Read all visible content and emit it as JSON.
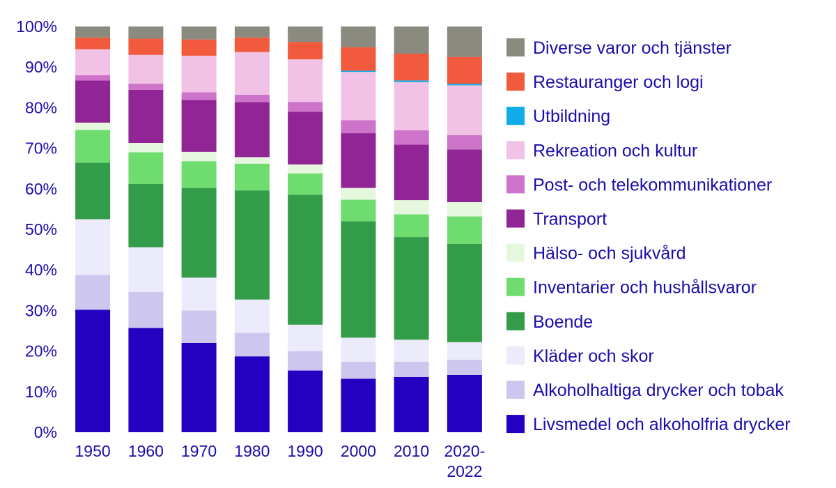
{
  "chart_data": {
    "type": "bar",
    "stacked": true,
    "title": "",
    "xlabel": "",
    "ylabel": "",
    "ylim": [
      0,
      100
    ],
    "y_tick_format": "{v}%",
    "y_ticks": [
      0,
      10,
      20,
      30,
      40,
      50,
      60,
      70,
      80,
      90,
      100
    ],
    "grid": false,
    "legend_position": "right",
    "categories": [
      {
        "label": "1950",
        "lines": [
          "1950"
        ]
      },
      {
        "label": "1960",
        "lines": [
          "1960"
        ]
      },
      {
        "label": "1970",
        "lines": [
          "1970"
        ]
      },
      {
        "label": "1980",
        "lines": [
          "1980"
        ]
      },
      {
        "label": "1990",
        "lines": [
          "1990"
        ]
      },
      {
        "label": "2000",
        "lines": [
          "2000"
        ]
      },
      {
        "label": "2010",
        "lines": [
          "2010"
        ]
      },
      {
        "label": "2020-2022",
        "lines": [
          "2020-",
          "2022"
        ]
      }
    ],
    "series": [
      {
        "name": "Livsmedel och alkoholfria drycker",
        "color": "#2400c1",
        "values": [
          30.2,
          25.7,
          22.0,
          18.7,
          15.2,
          13.2,
          13.6,
          14.1
        ]
      },
      {
        "name": "Alkoholhaltiga drycker och tobak",
        "color": "#cdc7ef",
        "values": [
          8.6,
          8.9,
          8.0,
          5.8,
          4.8,
          4.2,
          3.8,
          3.8
        ]
      },
      {
        "name": "Kläder och skor",
        "color": "#ecebfb",
        "values": [
          13.7,
          11.0,
          8.1,
          8.2,
          6.5,
          5.9,
          5.4,
          4.3
        ]
      },
      {
        "name": "Boende",
        "color": "#339c49",
        "values": [
          13.9,
          15.6,
          22.1,
          26.9,
          32.0,
          28.7,
          25.3,
          24.2
        ]
      },
      {
        "name": "Inventarier och hushållsvaror",
        "color": "#6edc6e",
        "values": [
          8.1,
          7.8,
          6.6,
          6.6,
          5.3,
          5.3,
          5.6,
          6.8
        ]
      },
      {
        "name": "Hälso- och sjukvård",
        "color": "#e5f8de",
        "values": [
          1.8,
          2.3,
          2.3,
          1.6,
          2.2,
          2.9,
          3.5,
          3.5
        ]
      },
      {
        "name": "Transport",
        "color": "#912596",
        "values": [
          10.4,
          13.1,
          12.8,
          13.6,
          13.0,
          13.5,
          13.7,
          13.0
        ]
      },
      {
        "name": "Post- och telekommunikationer",
        "color": "#cd73ca",
        "values": [
          1.3,
          1.5,
          1.9,
          1.8,
          2.4,
          3.2,
          3.5,
          3.5
        ]
      },
      {
        "name": "Rekreation och kultur",
        "color": "#f1c2e6",
        "values": [
          6.4,
          7.1,
          9.0,
          10.5,
          10.5,
          11.9,
          11.9,
          12.3
        ]
      },
      {
        "name": "Utbildning",
        "color": "#10ace8",
        "values": [
          0,
          0,
          0,
          0,
          0,
          0.3,
          0.4,
          0.4
        ]
      },
      {
        "name": "Restauranger och logi",
        "color": "#f15a3c",
        "values": [
          2.9,
          4.0,
          4.0,
          3.6,
          4.3,
          5.8,
          6.6,
          6.6
        ]
      },
      {
        "name": "Diverse varor och tjänster",
        "color": "#8a8a7e",
        "values": [
          2.7,
          3.0,
          3.2,
          2.7,
          3.8,
          5.1,
          6.7,
          7.5
        ]
      }
    ]
  }
}
